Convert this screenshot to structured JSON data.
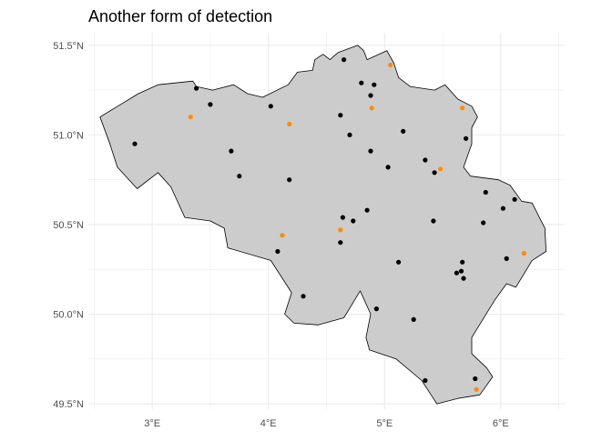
{
  "title": "Another form of detection",
  "map": {
    "x_axis": {
      "range": [
        2.45,
        6.55
      ],
      "ticks": [
        {
          "value": 3,
          "label": "3°E"
        },
        {
          "value": 4,
          "label": "4°E"
        },
        {
          "value": 5,
          "label": "5°E"
        },
        {
          "value": 6,
          "label": "6°E"
        }
      ],
      "minor": [
        2.5,
        3.5,
        4.5,
        5.5,
        6.5
      ]
    },
    "y_axis": {
      "range": [
        49.47,
        51.57
      ],
      "ticks": [
        {
          "value": 49.5,
          "label": "49.5°N"
        },
        {
          "value": 50.0,
          "label": "50.0°N"
        },
        {
          "value": 50.5,
          "label": "50.5°N"
        },
        {
          "value": 51.0,
          "label": "51.0°N"
        },
        {
          "value": 51.5,
          "label": "51.5°N"
        }
      ],
      "minor": [
        49.75,
        50.25,
        50.75,
        51.25
      ]
    },
    "colors": {
      "land_fill": "#cccccc",
      "border": "#000000",
      "grid": "#ebebeb",
      "point_default": "#000000",
      "point_detected": "#ff8c00"
    },
    "border_coords": [
      [
        2.55,
        51.1
      ],
      [
        2.88,
        51.23
      ],
      [
        3.05,
        51.28
      ],
      [
        3.35,
        51.3
      ],
      [
        3.38,
        51.27
      ],
      [
        3.52,
        51.25
      ],
      [
        3.7,
        51.28
      ],
      [
        3.82,
        51.23
      ],
      [
        3.95,
        51.21
      ],
      [
        4.17,
        51.28
      ],
      [
        4.25,
        51.35
      ],
      [
        4.38,
        51.36
      ],
      [
        4.4,
        51.42
      ],
      [
        4.47,
        51.45
      ],
      [
        4.53,
        51.42
      ],
      [
        4.6,
        51.46
      ],
      [
        4.77,
        51.5
      ],
      [
        4.82,
        51.47
      ],
      [
        4.85,
        51.42
      ],
      [
        5.02,
        51.47
      ],
      [
        5.08,
        51.4
      ],
      [
        5.12,
        51.32
      ],
      [
        5.22,
        51.27
      ],
      [
        5.43,
        51.25
      ],
      [
        5.52,
        51.28
      ],
      [
        5.63,
        51.2
      ],
      [
        5.75,
        51.16
      ],
      [
        5.8,
        51.1
      ],
      [
        5.75,
        51.04
      ],
      [
        5.75,
        50.95
      ],
      [
        5.68,
        50.82
      ],
      [
        5.74,
        50.77
      ],
      [
        5.98,
        50.75
      ],
      [
        6.08,
        50.72
      ],
      [
        6.18,
        50.63
      ],
      [
        6.27,
        50.62
      ],
      [
        6.38,
        50.48
      ],
      [
        6.39,
        50.35
      ],
      [
        6.27,
        50.3
      ],
      [
        6.13,
        50.15
      ],
      [
        6.05,
        50.17
      ],
      [
        5.95,
        50.08
      ],
      [
        5.75,
        49.87
      ],
      [
        5.75,
        49.78
      ],
      [
        5.88,
        49.7
      ],
      [
        5.93,
        49.65
      ],
      [
        5.82,
        49.55
      ],
      [
        5.63,
        49.53
      ],
      [
        5.45,
        49.5
      ],
      [
        5.4,
        49.55
      ],
      [
        5.32,
        49.63
      ],
      [
        5.1,
        49.75
      ],
      [
        4.87,
        49.8
      ],
      [
        4.84,
        49.87
      ],
      [
        4.88,
        50.0
      ],
      [
        4.79,
        50.13
      ],
      [
        4.65,
        49.98
      ],
      [
        4.43,
        49.94
      ],
      [
        4.22,
        49.95
      ],
      [
        4.14,
        50.0
      ],
      [
        4.2,
        50.12
      ],
      [
        4.02,
        50.3
      ],
      [
        3.65,
        50.37
      ],
      [
        3.62,
        50.48
      ],
      [
        3.5,
        50.52
      ],
      [
        3.28,
        50.54
      ],
      [
        3.16,
        50.71
      ],
      [
        3.05,
        50.79
      ],
      [
        2.87,
        50.7
      ],
      [
        2.7,
        50.82
      ],
      [
        2.63,
        50.96
      ],
      [
        2.55,
        51.1
      ]
    ],
    "points": [
      [
        3.38,
        51.26,
        0
      ],
      [
        3.5,
        51.17,
        0
      ],
      [
        3.33,
        51.1,
        1
      ],
      [
        2.85,
        50.95,
        0
      ],
      [
        3.68,
        50.91,
        0
      ],
      [
        3.75,
        50.77,
        0
      ],
      [
        4.02,
        51.16,
        0
      ],
      [
        4.18,
        51.06,
        1
      ],
      [
        4.18,
        50.75,
        0
      ],
      [
        4.12,
        50.44,
        1
      ],
      [
        4.08,
        50.35,
        0
      ],
      [
        4.3,
        50.1,
        0
      ],
      [
        4.65,
        51.42,
        0
      ],
      [
        4.8,
        51.29,
        0
      ],
      [
        4.88,
        51.22,
        0
      ],
      [
        4.91,
        51.28,
        0
      ],
      [
        5.05,
        51.39,
        1
      ],
      [
        4.62,
        51.11,
        0
      ],
      [
        4.89,
        51.15,
        1
      ],
      [
        4.7,
        51.0,
        0
      ],
      [
        4.88,
        50.91,
        0
      ],
      [
        5.16,
        51.02,
        0
      ],
      [
        5.03,
        50.82,
        0
      ],
      [
        5.67,
        51.15,
        1
      ],
      [
        5.7,
        50.98,
        0
      ],
      [
        5.35,
        50.86,
        0
      ],
      [
        5.43,
        50.79,
        0
      ],
      [
        5.48,
        50.81,
        1
      ],
      [
        4.62,
        50.47,
        1
      ],
      [
        4.64,
        50.54,
        0
      ],
      [
        4.73,
        50.52,
        0
      ],
      [
        4.85,
        50.58,
        0
      ],
      [
        4.62,
        50.4,
        0
      ],
      [
        5.42,
        50.52,
        0
      ],
      [
        5.12,
        50.29,
        0
      ],
      [
        5.87,
        50.68,
        0
      ],
      [
        5.85,
        50.51,
        0
      ],
      [
        6.02,
        50.59,
        0
      ],
      [
        6.12,
        50.64,
        0
      ],
      [
        5.62,
        50.23,
        0
      ],
      [
        5.66,
        50.24,
        0
      ],
      [
        5.67,
        50.29,
        0
      ],
      [
        5.68,
        50.2,
        0
      ],
      [
        6.05,
        50.31,
        0
      ],
      [
        6.2,
        50.34,
        1
      ],
      [
        4.93,
        50.03,
        0
      ],
      [
        5.25,
        49.97,
        0
      ],
      [
        5.35,
        49.63,
        0
      ],
      [
        5.78,
        49.64,
        0
      ],
      [
        5.79,
        49.58,
        1
      ]
    ]
  }
}
